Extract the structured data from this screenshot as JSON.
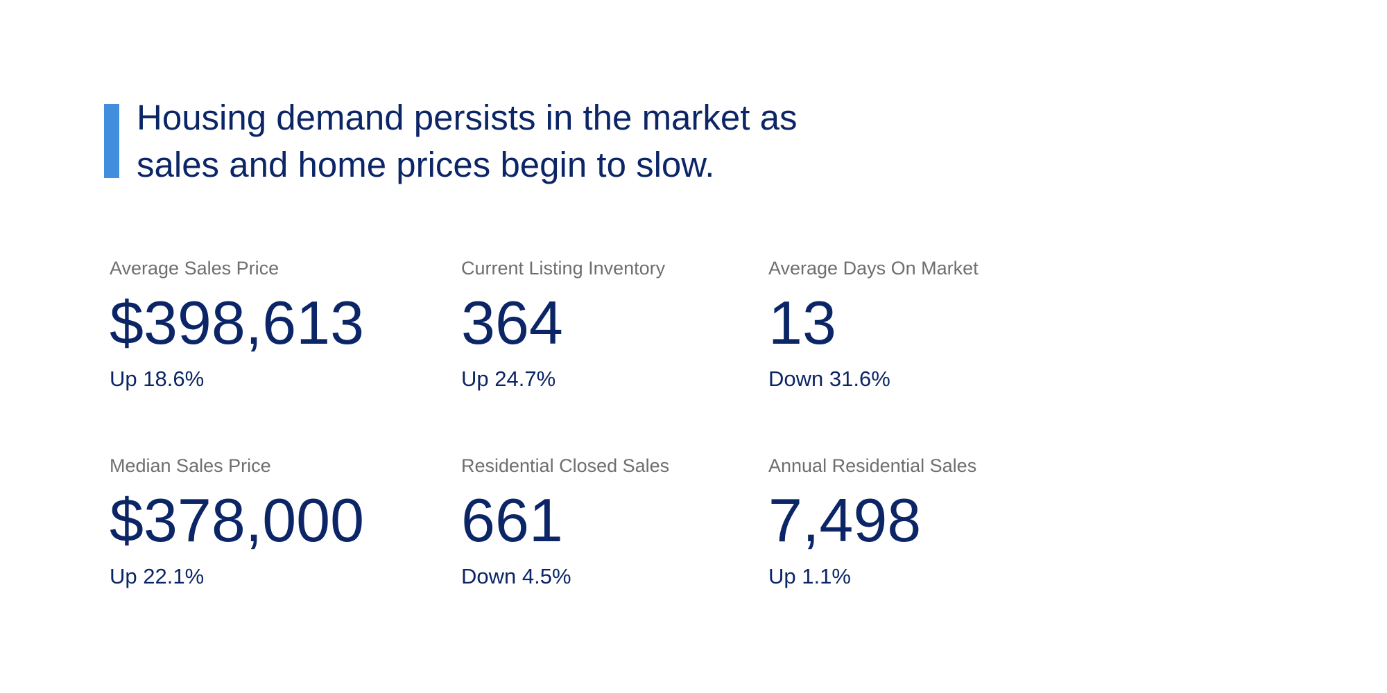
{
  "headline": {
    "lines": [
      "Housing demand persists in the market as",
      "sales and home prices begin to slow."
    ],
    "accent_color": "#418fdc",
    "text_color": "#0b2566"
  },
  "stats": [
    {
      "label": "Average Sales Price",
      "value": "$398,613",
      "change": "Up 18.6%"
    },
    {
      "label": "Current Listing Inventory",
      "value": "364",
      "change": "Up 24.7%"
    },
    {
      "label": "Average Days On Market",
      "value": "13",
      "change": "Down 31.6%"
    },
    {
      "label": "Median Sales Price",
      "value": "$378,000",
      "change": "Up 22.1%"
    },
    {
      "label": "Residential Closed Sales",
      "value": "661",
      "change": "Down 4.5%"
    },
    {
      "label": "Annual Residential Sales",
      "value": "7,498",
      "change": "Up 1.1%"
    }
  ]
}
